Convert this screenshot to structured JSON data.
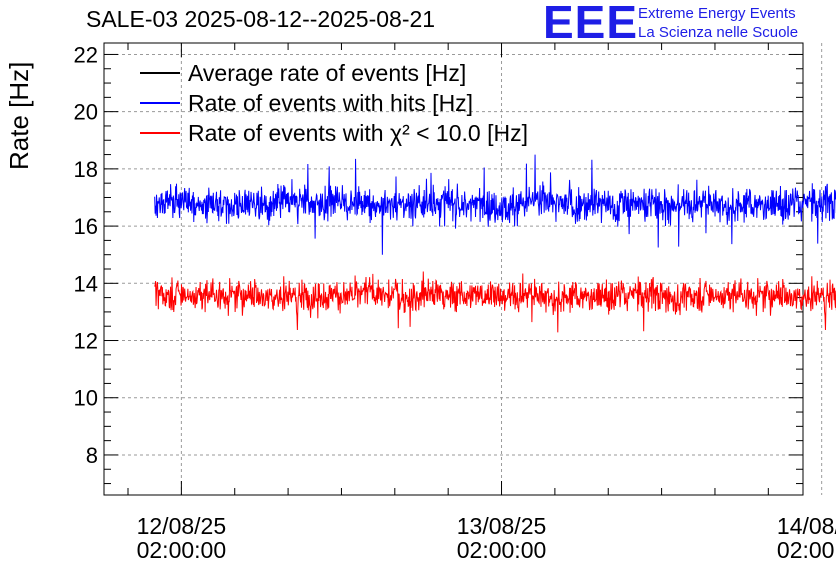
{
  "chart_data": {
    "type": "line",
    "title": "SALE-03 2025-08-12--2025-08-21",
    "ylabel": "Rate [Hz]",
    "xlabel": "",
    "ylim": [
      6.6,
      22.4
    ],
    "yticks": [
      8,
      10,
      12,
      14,
      16,
      18,
      20,
      22
    ],
    "ytick_labels": [
      "8",
      "10",
      "12",
      "14",
      "16",
      "18",
      "20",
      "22"
    ],
    "xlim_hours": [
      -2.9,
      23.3
    ],
    "xticks_hours": [
      0,
      12,
      24
    ],
    "xtick_labels": [
      {
        "date": "12/08/25",
        "time": "02:00:00"
      },
      {
        "date": "13/08/25",
        "time": "02:00:00"
      },
      {
        "date": "14/08/25",
        "time": "02:00:00"
      }
    ],
    "grid": true,
    "legend_position": "top-left",
    "series": [
      {
        "name": "Average rate of events [Hz]",
        "color": "#000000",
        "mean": null,
        "noise": null,
        "x_range_hours": null
      },
      {
        "name": "Rate of events with hits [Hz]",
        "color": "#0000ff",
        "mean": 16.8,
        "noise": 0.55,
        "min": 15.0,
        "max": 18.5,
        "x_range_hours": [
          -1.0,
          25.3
        ]
      },
      {
        "name": "Rate of events with χ² < 10.0 [Hz]",
        "color": "#ff0000",
        "mean": 13.6,
        "noise": 0.5,
        "min": 11.8,
        "max": 15.3,
        "x_range_hours": [
          -1.0,
          25.3
        ]
      }
    ]
  },
  "logo": {
    "mark": "EEE",
    "line1": "Extreme Energy Events",
    "line2": "La Scienza nelle Scuole"
  },
  "colors": {
    "blue": "#0000ff",
    "red": "#ff0000",
    "black": "#000000",
    "logo": "#1e1ee6"
  }
}
